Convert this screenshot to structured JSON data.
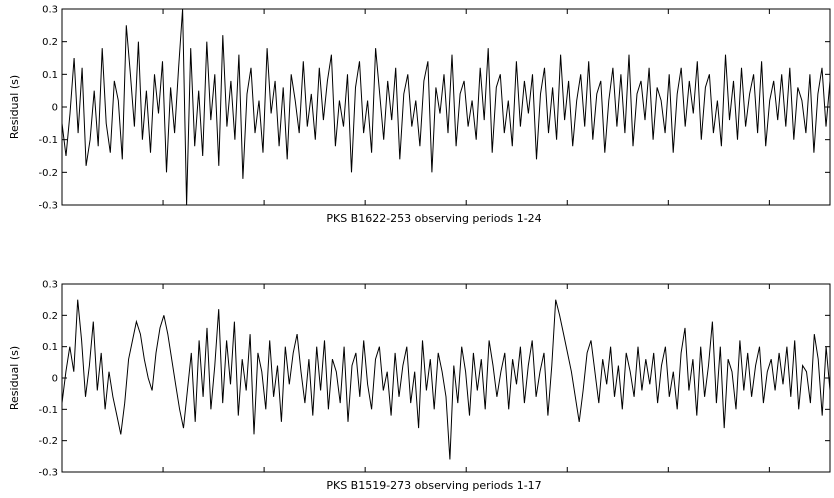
{
  "chart_data": [
    {
      "type": "line",
      "title": "",
      "xlabel": "PKS B1622-253 observing periods 1-24",
      "ylabel": "Residual (s)",
      "ylim": [
        -0.3,
        0.3
      ],
      "yticks": [
        {
          "value": 0.3,
          "label": "0.3"
        },
        {
          "value": 0.2,
          "label": "0.2"
        },
        {
          "value": 0.1,
          "label": "0.1"
        },
        {
          "value": 0,
          "label": "0"
        },
        {
          "value": -0.1,
          "label": "-0.1"
        },
        {
          "value": -0.2,
          "label": "-0.2"
        },
        {
          "value": -0.3,
          "label": "-0.3"
        }
      ],
      "xlim": [
        0,
        380
      ],
      "xtick_values": [
        0,
        50,
        100,
        150,
        200,
        250,
        300,
        350
      ],
      "grid": false,
      "color": "#000000",
      "series": [
        {
          "values": [
            -0.05,
            -0.15,
            -0.02,
            0.15,
            -0.08,
            0.12,
            -0.18,
            -0.1,
            0.05,
            -0.12,
            0.18,
            -0.05,
            -0.14,
            0.08,
            0.02,
            -0.16,
            0.25,
            0.1,
            -0.06,
            0.2,
            -0.1,
            0.05,
            -0.14,
            0.1,
            -0.02,
            0.14,
            -0.2,
            0.06,
            -0.08,
            0.12,
            0.3,
            -0.3,
            0.18,
            -0.12,
            0.05,
            -0.15,
            0.2,
            -0.04,
            0.1,
            -0.18,
            0.22,
            -0.06,
            0.08,
            -0.1,
            0.16,
            -0.22,
            0.04,
            0.12,
            -0.08,
            0.02,
            -0.14,
            0.18,
            -0.02,
            0.08,
            -0.12,
            0.06,
            -0.16,
            0.1,
            0.02,
            -0.08,
            0.14,
            -0.06,
            0.04,
            -0.1,
            0.12,
            -0.04,
            0.08,
            0.16,
            -0.12,
            0.02,
            -0.06,
            0.1,
            -0.2,
            0.06,
            0.14,
            -0.08,
            0.02,
            -0.14,
            0.18,
            0.04,
            -0.1,
            0.08,
            -0.04,
            0.12,
            -0.16,
            0.04,
            0.1,
            -0.06,
            0.02,
            -0.12,
            0.08,
            0.14,
            -0.2,
            0.06,
            -0.02,
            0.1,
            -0.08,
            0.16,
            -0.12,
            0.04,
            0.08,
            -0.06,
            0.02,
            -0.1,
            0.12,
            -0.04,
            0.18,
            -0.14,
            0.06,
            0.1,
            -0.08,
            0.02,
            -0.12,
            0.14,
            -0.06,
            0.08,
            -0.02,
            0.1,
            -0.16,
            0.04,
            0.12,
            -0.08,
            0.06,
            -0.1,
            0.16,
            -0.04,
            0.08,
            -0.12,
            0.02,
            0.1,
            -0.06,
            0.14,
            -0.1,
            0.04,
            0.08,
            -0.14,
            0.02,
            0.12,
            -0.06,
            0.1,
            -0.08,
            0.16,
            -0.12,
            0.04,
            0.08,
            -0.04,
            0.12,
            -0.1,
            0.06,
            0.02,
            -0.08,
            0.1,
            -0.14,
            0.04,
            0.12,
            -0.06,
            0.08,
            -0.02,
            0.14,
            -0.1,
            0.06,
            0.1,
            -0.08,
            0.02,
            -0.12,
            0.16,
            -0.04,
            0.08,
            -0.1,
            0.12,
            -0.06,
            0.04,
            0.1,
            -0.08,
            0.14,
            -0.12,
            0.02,
            0.08,
            -0.04,
            0.1,
            -0.06,
            0.12,
            -0.1,
            0.06,
            0.02,
            -0.08,
            0.1,
            -0.14,
            0.04,
            0.12,
            -0.06,
            0.08
          ]
        }
      ]
    },
    {
      "type": "line",
      "title": "",
      "xlabel": "PKS B1519-273 observing periods 1-17",
      "ylabel": "Residual (s)",
      "ylim": [
        -0.3,
        0.3
      ],
      "yticks": [
        {
          "value": 0.3,
          "label": "0.3"
        },
        {
          "value": 0.2,
          "label": "0.2"
        },
        {
          "value": 0.1,
          "label": "0.1"
        },
        {
          "value": 0,
          "label": "0"
        },
        {
          "value": -0.1,
          "label": "-0.1"
        },
        {
          "value": -0.2,
          "label": "-0.2"
        },
        {
          "value": -0.3,
          "label": "-0.3"
        }
      ],
      "xlim": [
        0,
        380
      ],
      "xtick_values": [
        0,
        50,
        100,
        150,
        200,
        250,
        300,
        350
      ],
      "grid": false,
      "color": "#000000",
      "series": [
        {
          "values": [
            -0.08,
            0.02,
            0.1,
            0.02,
            0.25,
            0.12,
            -0.06,
            0.04,
            0.18,
            -0.04,
            0.08,
            -0.1,
            0.02,
            -0.06,
            -0.12,
            -0.18,
            -0.08,
            0.06,
            0.12,
            0.18,
            0.14,
            0.06,
            0,
            -0.04,
            0.08,
            0.16,
            0.2,
            0.14,
            0.06,
            -0.02,
            -0.1,
            -0.16,
            -0.04,
            0.08,
            -0.14,
            0.12,
            -0.06,
            0.16,
            -0.1,
            0.04,
            0.22,
            -0.08,
            0.12,
            -0.02,
            0.18,
            -0.12,
            0.06,
            -0.04,
            0.14,
            -0.18,
            0.08,
            0.02,
            -0.1,
            0.12,
            -0.06,
            0.04,
            -0.14,
            0.1,
            -0.02,
            0.08,
            0.14,
            0.02,
            -0.08,
            0.06,
            -0.12,
            0.1,
            -0.04,
            0.12,
            -0.1,
            0.06,
            0.02,
            -0.08,
            0.1,
            -0.14,
            0.04,
            0.08,
            -0.06,
            0.12,
            -0.02,
            -0.1,
            0.06,
            0.1,
            -0.04,
            0.02,
            -0.12,
            0.08,
            -0.06,
            0.04,
            0.1,
            -0.08,
            0.02,
            -0.16,
            0.12,
            -0.04,
            0.06,
            -0.1,
            0.08,
            0.02,
            -0.06,
            -0.26,
            0.04,
            -0.08,
            0.1,
            0.02,
            -0.12,
            0.08,
            -0.04,
            0.06,
            -0.1,
            0.12,
            0.04,
            -0.06,
            0.02,
            0.08,
            -0.1,
            0.06,
            -0.02,
            0.1,
            -0.08,
            0.04,
            0.12,
            -0.06,
            0.02,
            0.08,
            -0.12,
            0.04,
            0.25,
            0.2,
            0.14,
            0.08,
            0.02,
            -0.06,
            -0.14,
            -0.04,
            0.08,
            0.12,
            0.02,
            -0.08,
            0.06,
            -0.02,
            0.1,
            -0.06,
            0.04,
            -0.1,
            0.08,
            0.02,
            -0.06,
            0.1,
            -0.04,
            0.06,
            -0.02,
            0.08,
            -0.08,
            0.04,
            0.1,
            -0.06,
            0.02,
            -0.1,
            0.08,
            0.16,
            -0.04,
            0.06,
            -0.12,
            0.1,
            -0.06,
            0.04,
            0.18,
            -0.08,
            0.1,
            -0.16,
            0.06,
            0.02,
            -0.1,
            0.12,
            -0.04,
            0.08,
            -0.06,
            0.04,
            0.1,
            -0.08,
            0.02,
            0.06,
            -0.04,
            0.08,
            -0.02,
            0.1,
            -0.06,
            0.12,
            -0.1,
            0.04,
            0.02,
            -0.08,
            0.14,
            0.06,
            -0.12,
            0.1,
            -0.04
          ]
        }
      ]
    }
  ]
}
